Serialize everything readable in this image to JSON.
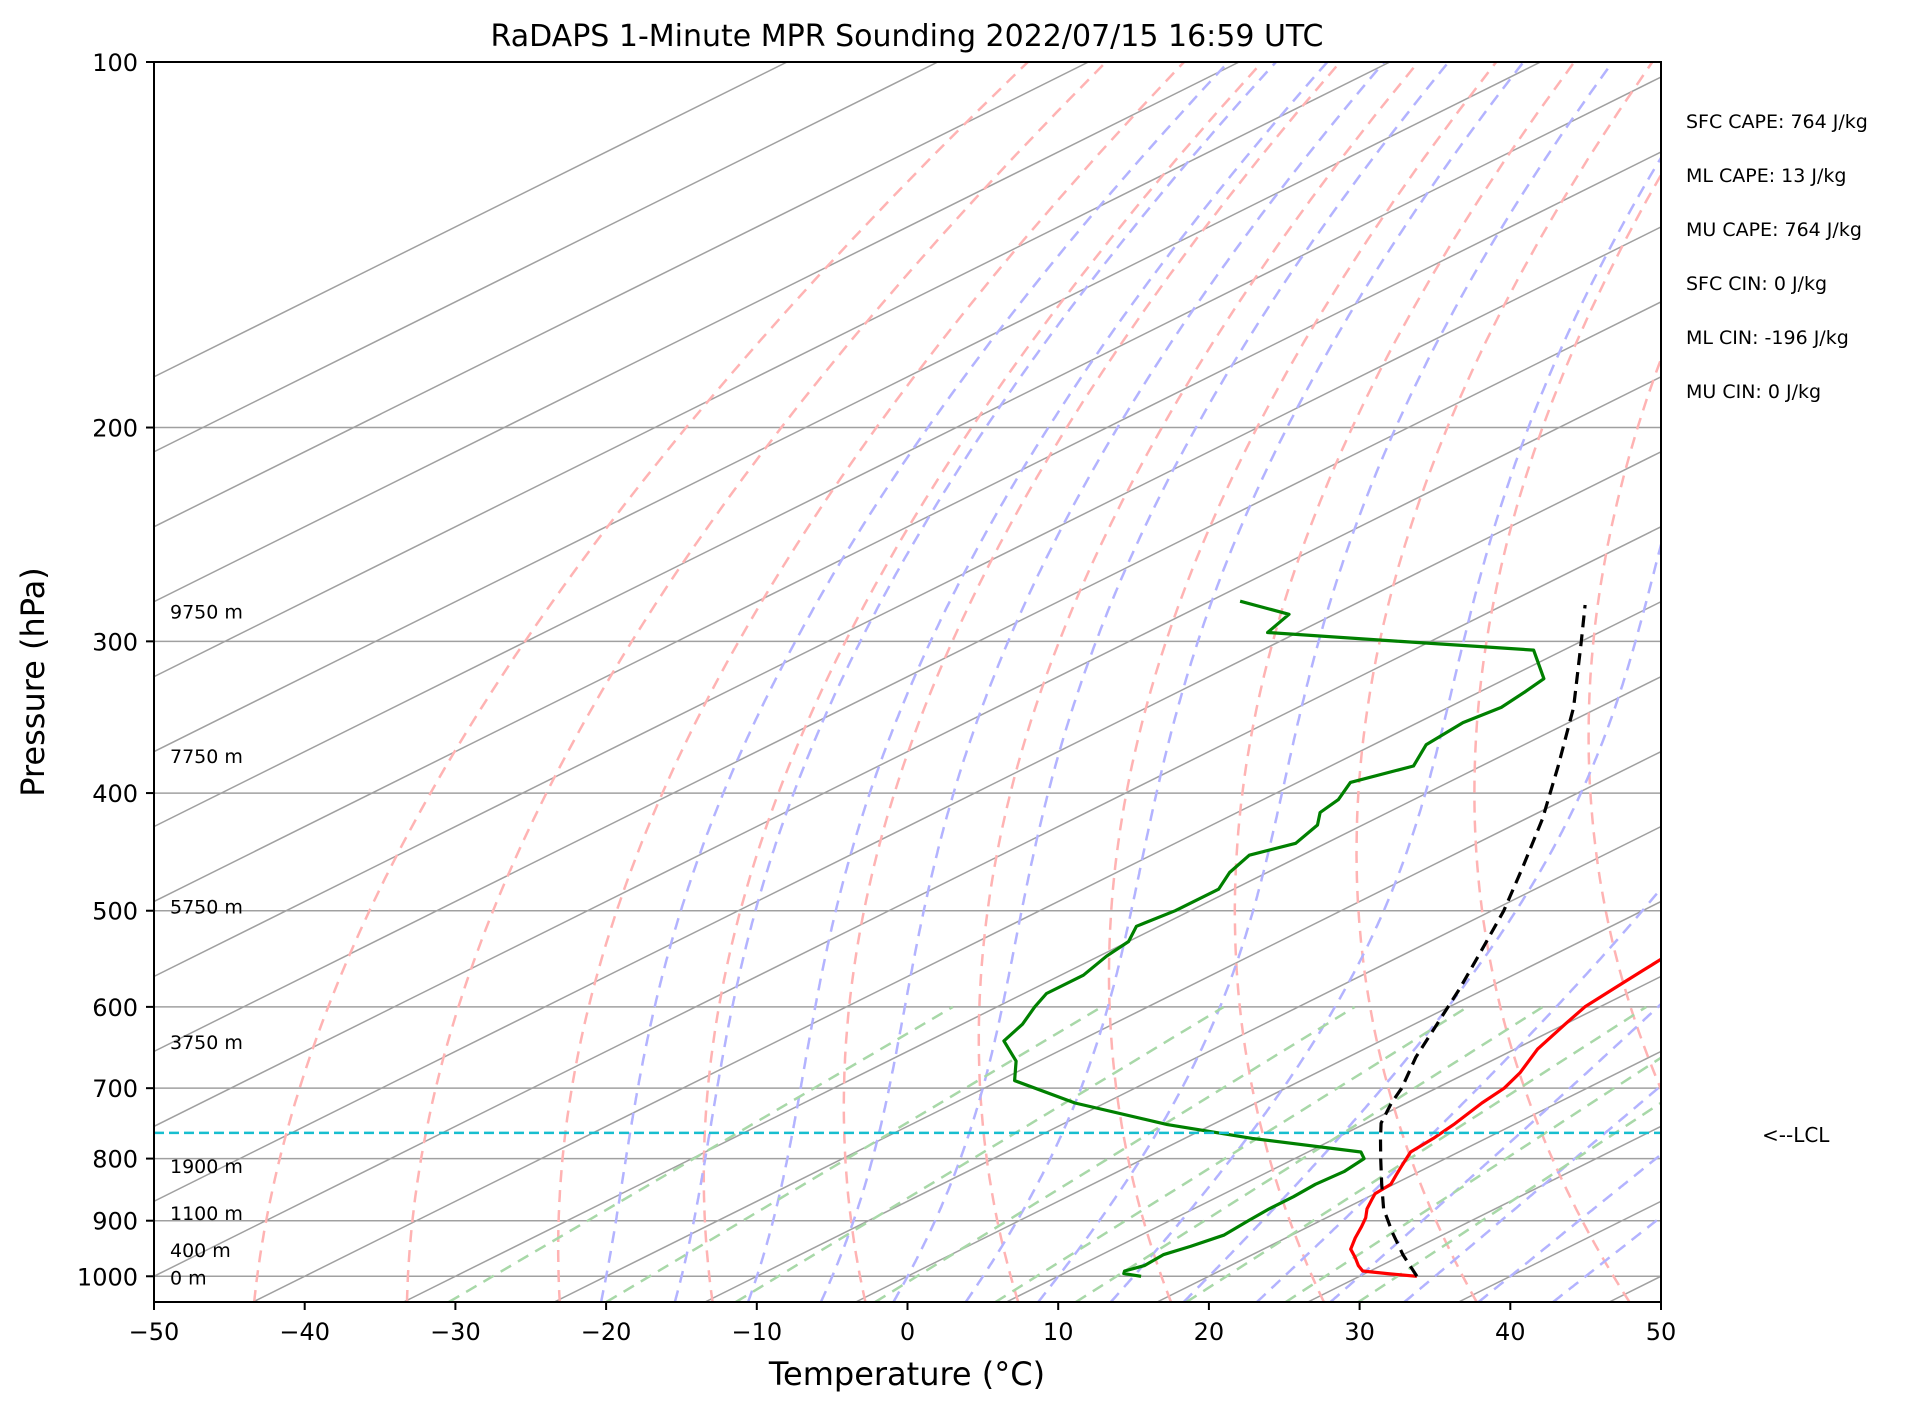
{
  "chart_data": {
    "type": "line",
    "subtype": "skew-t log-p",
    "title": "RaDAPS 1-Minute MPR Sounding 2022/07/15 16:59 UTC",
    "xlabel": "Temperature (°C)",
    "ylabel": "Pressure (hPa)",
    "xlim": [
      -50,
      50
    ],
    "ylim": [
      1050,
      100
    ],
    "y_scale": "log",
    "grid": true,
    "x_ticks": [
      "−50",
      "−40",
      "−30",
      "−20",
      "−10",
      "0",
      "10",
      "20",
      "30",
      "40",
      "50"
    ],
    "x_tick_values": [
      -50,
      -40,
      -30,
      -20,
      -10,
      0,
      10,
      20,
      30,
      40,
      50
    ],
    "y_ticks": [
      "100",
      "200",
      "300",
      "400",
      "500",
      "600",
      "700",
      "800",
      "900",
      "1000"
    ],
    "y_tick_values": [
      100,
      200,
      300,
      400,
      500,
      600,
      700,
      800,
      900,
      1000
    ],
    "colors": {
      "temperature": "#ff0000",
      "dewpoint": "#008000",
      "parcel": "#000000",
      "isotherm": "#a0a0a0",
      "dry_adiabat": "#ffb3b3",
      "moist_adiabat": "#b3b3ff",
      "mixing_ratio": "#a8d8a8",
      "lcl": "#17becf"
    },
    "series": [
      {
        "role": "temperature",
        "points": [
          [
            1000,
            33.8
          ],
          [
            995,
            31.5
          ],
          [
            990,
            29.5
          ],
          [
            980,
            28.5
          ],
          [
            965,
            27.2
          ],
          [
            950,
            25.8
          ],
          [
            930,
            24.6
          ],
          [
            910,
            23.5
          ],
          [
            895,
            22.6
          ],
          [
            880,
            21.5
          ],
          [
            865,
            20.6
          ],
          [
            855,
            20.0
          ],
          [
            840,
            19.8
          ],
          [
            825,
            18.9
          ],
          [
            810,
            18.0
          ],
          [
            790,
            16.8
          ],
          [
            770,
            16.5
          ],
          [
            750,
            16.0
          ],
          [
            720,
            15.0
          ],
          [
            700,
            14.5
          ],
          [
            680,
            13.5
          ],
          [
            650,
            11.5
          ],
          [
            620,
            10.0
          ],
          [
            600,
            9.0
          ],
          [
            580,
            8.5
          ],
          [
            560,
            8.0
          ],
          [
            540,
            7.5
          ],
          [
            500,
            4.0
          ],
          [
            480,
            2.0
          ],
          [
            465,
            1.0
          ],
          [
            440,
            -2.0
          ],
          [
            410,
            -6.0
          ],
          [
            380,
            -10.0
          ],
          [
            345,
            -16.0
          ],
          [
            310,
            -21.0
          ],
          [
            290,
            -24.5
          ],
          [
            278,
            -26.5
          ]
        ]
      },
      {
        "role": "dewpoint",
        "points": [
          [
            1000,
            15.5
          ],
          [
            995,
            14.0
          ],
          [
            990,
            13.7
          ],
          [
            980,
            14.3
          ],
          [
            960,
            14.1
          ],
          [
            945,
            14.8
          ],
          [
            925,
            15.5
          ],
          [
            900,
            15.2
          ],
          [
            880,
            15.0
          ],
          [
            860,
            15.0
          ],
          [
            840,
            14.8
          ],
          [
            820,
            15.0
          ],
          [
            800,
            14.6
          ],
          [
            790,
            13.5
          ],
          [
            770,
            4.5
          ],
          [
            750,
            -3.0
          ],
          [
            720,
            -12.0
          ],
          [
            690,
            -19.0
          ],
          [
            665,
            -21.5
          ],
          [
            640,
            -25.0
          ],
          [
            620,
            -26.0
          ],
          [
            600,
            -27.5
          ],
          [
            585,
            -28.5
          ],
          [
            565,
            -28.5
          ],
          [
            545,
            -29.5
          ],
          [
            530,
            -30.0
          ],
          [
            515,
            -31.5
          ],
          [
            500,
            -31.0
          ],
          [
            480,
            -31.0
          ],
          [
            465,
            -32.5
          ],
          [
            450,
            -33.5
          ],
          [
            440,
            -32.0
          ],
          [
            425,
            -33.0
          ],
          [
            415,
            -34.5
          ],
          [
            405,
            -35.0
          ],
          [
            392,
            -36.5
          ],
          [
            380,
            -34.5
          ],
          [
            365,
            -36.5
          ],
          [
            350,
            -37.0
          ],
          [
            340,
            -36.5
          ],
          [
            330,
            -37.0
          ],
          [
            322,
            -37.5
          ],
          [
            305,
            -42.0
          ],
          [
            300,
            -52.0
          ],
          [
            295,
            -62.0
          ],
          [
            285,
            -63.0
          ],
          [
            278,
            -68.0
          ]
        ]
      },
      {
        "role": "parcel",
        "points": [
          [
            1000,
            33.8
          ],
          [
            960,
            30.0
          ],
          [
            920,
            26.3
          ],
          [
            880,
            22.6
          ],
          [
            840,
            19.2
          ],
          [
            800,
            15.7
          ],
          [
            770,
            13.0
          ],
          [
            748,
            11.0
          ],
          [
            720,
            9.0
          ],
          [
            700,
            7.7
          ],
          [
            660,
            4.5
          ],
          [
            620,
            1.5
          ],
          [
            580,
            -1.7
          ],
          [
            540,
            -5.3
          ],
          [
            500,
            -9.2
          ],
          [
            460,
            -13.8
          ],
          [
            420,
            -18.9
          ],
          [
            380,
            -24.9
          ],
          [
            340,
            -31.7
          ],
          [
            300,
            -40.0
          ],
          [
            280,
            -44.6
          ]
        ]
      }
    ],
    "lcl_pressure": 762,
    "lcl_label": "<--LCL",
    "height_labels": [
      {
        "p": 1000,
        "label": "0 m"
      },
      {
        "p": 950,
        "label": "400 m"
      },
      {
        "p": 885,
        "label": "1100 m"
      },
      {
        "p": 810,
        "label": "1900 m"
      },
      {
        "p": 640,
        "label": "3750 m"
      },
      {
        "p": 495,
        "label": "5750 m"
      },
      {
        "p": 372,
        "label": "7750 m"
      },
      {
        "p": 283,
        "label": "9750 m"
      }
    ],
    "annotations": [
      "SFC CAPE: 764 J/kg",
      "ML CAPE: 13 J/kg",
      "MU CAPE: 764 J/kg",
      "SFC CIN: 0 J/kg",
      "ML CIN: -196 J/kg",
      "MU CIN: 0 J/kg"
    ]
  }
}
